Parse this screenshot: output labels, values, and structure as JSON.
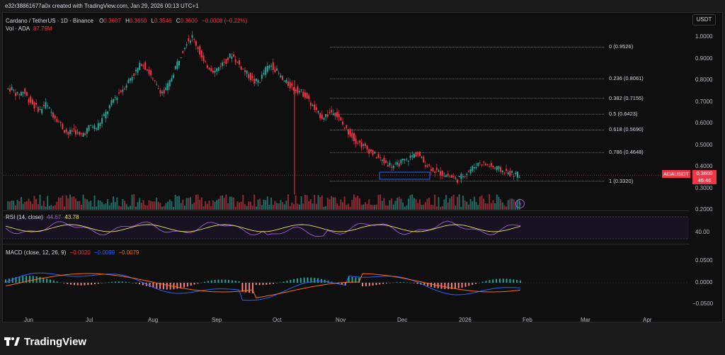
{
  "header": {
    "credit": "e32r38861677a0x created with TradingView.com, Jan 29, 2026 00:13 UTC+1",
    "symbol": "Cardano / TetherUS · 1D · Binance",
    "o_label": "O",
    "o": "0.3607",
    "h_label": "H",
    "h": "0.3650",
    "l_label": "L",
    "l": "0.3546",
    "c_label": "C",
    "c": "0.3600",
    "change": "−0.0008 (−0.22%)",
    "vol_label": "Vol · ADA",
    "vol": "87.79M"
  },
  "currency_button": "USDT",
  "price_axis": [
    "1.0000",
    "0.9000",
    "0.8000",
    "0.7000",
    "0.6000",
    "0.5000",
    "0.4000",
    "0.3000",
    "0.2000"
  ],
  "price_tag": {
    "symbol": "ADAUSDT",
    "price": "0.3600",
    "countdown": "46:46"
  },
  "fib_levels": [
    {
      "label": "0 (0.9526)",
      "value": 0.9526
    },
    {
      "label": "0.236 (0.8061)",
      "value": 0.8061
    },
    {
      "label": "0.382 (0.7155)",
      "value": 0.7155
    },
    {
      "label": "0.5 (0.6423)",
      "value": 0.6423
    },
    {
      "label": "0.618 (0.5690)",
      "value": 0.569
    },
    {
      "label": "0.786 (0.4648)",
      "value": 0.4648
    },
    {
      "label": "1 (0.3320)",
      "value": 0.332
    }
  ],
  "rsi": {
    "label": "RSI (14, close)",
    "value1": "44.67",
    "value2": "43.78",
    "axis": "40.00"
  },
  "macd": {
    "label": "MACD (close, 12, 26, 9)",
    "hist": "−0.0020",
    "macd": "−0.0099",
    "signal": "−0.0079",
    "axis": [
      "0.0500",
      "0.0000",
      "−0.0500"
    ]
  },
  "months": [
    "Jun",
    "Jul",
    "Aug",
    "Sep",
    "Oct",
    "Nov",
    "Dec",
    "2026",
    "Feb",
    "Mar",
    "Apr"
  ],
  "footer": {
    "brand": "TradingView"
  },
  "colors": {
    "up": "#26a69a",
    "down": "#f23645",
    "rsi": "#a05bd5",
    "rsi_ma": "#e8e84a",
    "macd": "#2962ff",
    "signal": "#ff6d00"
  },
  "price_series": [
    0.76,
    0.73,
    0.75,
    0.71,
    0.68,
    0.66,
    0.69,
    0.65,
    0.62,
    0.58,
    0.55,
    0.57,
    0.54,
    0.56,
    0.59,
    0.58,
    0.62,
    0.66,
    0.71,
    0.74,
    0.77,
    0.81,
    0.84,
    0.88,
    0.85,
    0.8,
    0.76,
    0.74,
    0.79,
    0.86,
    0.92,
    0.98,
    1.0,
    0.95,
    0.88,
    0.86,
    0.84,
    0.87,
    0.89,
    0.92,
    0.88,
    0.85,
    0.82,
    0.79,
    0.8,
    0.85,
    0.87,
    0.84,
    0.8,
    0.78,
    0.76,
    0.75,
    0.73,
    0.69,
    0.65,
    0.63,
    0.64,
    0.66,
    0.62,
    0.58,
    0.55,
    0.52,
    0.5,
    0.48,
    0.46,
    0.44,
    0.42,
    0.41,
    0.4,
    0.42,
    0.43,
    0.45,
    0.46,
    0.42,
    0.4,
    0.38,
    0.37,
    0.36,
    0.35,
    0.34,
    0.36,
    0.38,
    0.4,
    0.42,
    0.41,
    0.4,
    0.39,
    0.38,
    0.37,
    0.365,
    0.36
  ]
}
